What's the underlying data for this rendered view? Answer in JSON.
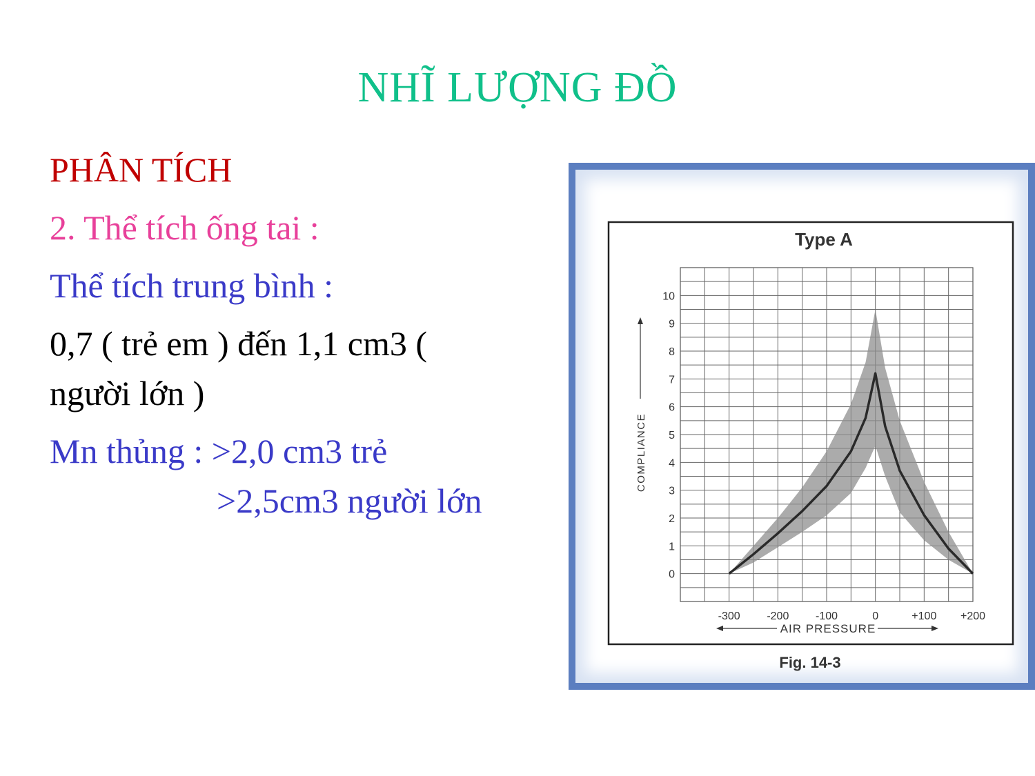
{
  "slide": {
    "title": "NHĨ LƯỢNG ĐỒ",
    "heading": "PHÂN TÍCH",
    "subheading": "2. Thể tích ống tai :",
    "average_label": "Thể tích trung bình  :",
    "range_line1": "0,7 ( trẻ em ) đến 1,1 cm3 (",
    "range_line2": "người lớn )",
    "perforation_line1": "Mn thủng : >2,0 cm3 trẻ",
    "perforation_line2": ">2,5cm3 người lớn",
    "colors": {
      "title": "#10c08a",
      "heading": "#c00000",
      "subheading": "#e8409a",
      "blue_text": "#3a3ac8"
    }
  },
  "chart_data": {
    "type": "line",
    "title": "Type A",
    "caption": "Fig. 14-3",
    "xlabel": "AIR PRESSURE",
    "ylabel": "COMPLIANCE",
    "x_ticks": [
      "-300",
      "-200",
      "-100",
      "0",
      "+100",
      "+200"
    ],
    "y_ticks": [
      "0",
      "1",
      "2",
      "3",
      "4",
      "5",
      "6",
      "7",
      "8",
      "9",
      "10"
    ],
    "xlim": [
      -400,
      200
    ],
    "ylim": [
      -1,
      11
    ],
    "grid": true,
    "series": [
      {
        "x": [
          -300,
          -250,
          -200,
          -150,
          -100,
          -50,
          -20,
          0,
          20,
          50,
          100,
          150,
          200
        ],
        "y": [
          0,
          0.7,
          1.45,
          2.25,
          3.15,
          4.4,
          5.6,
          7.2,
          5.3,
          3.7,
          2.1,
          0.9,
          0
        ]
      }
    ],
    "band": {
      "x": [
        -300,
        -250,
        -200,
        -150,
        -100,
        -50,
        -20,
        0,
        20,
        50,
        100,
        150,
        200
      ],
      "upper": [
        0,
        1.0,
        2.0,
        3.1,
        4.4,
        6.1,
        7.6,
        9.5,
        7.4,
        5.5,
        3.3,
        1.5,
        0
      ],
      "lower": [
        0,
        0.4,
        0.95,
        1.5,
        2.1,
        2.9,
        3.8,
        4.6,
        3.5,
        2.2,
        1.2,
        0.5,
        0
      ]
    }
  }
}
